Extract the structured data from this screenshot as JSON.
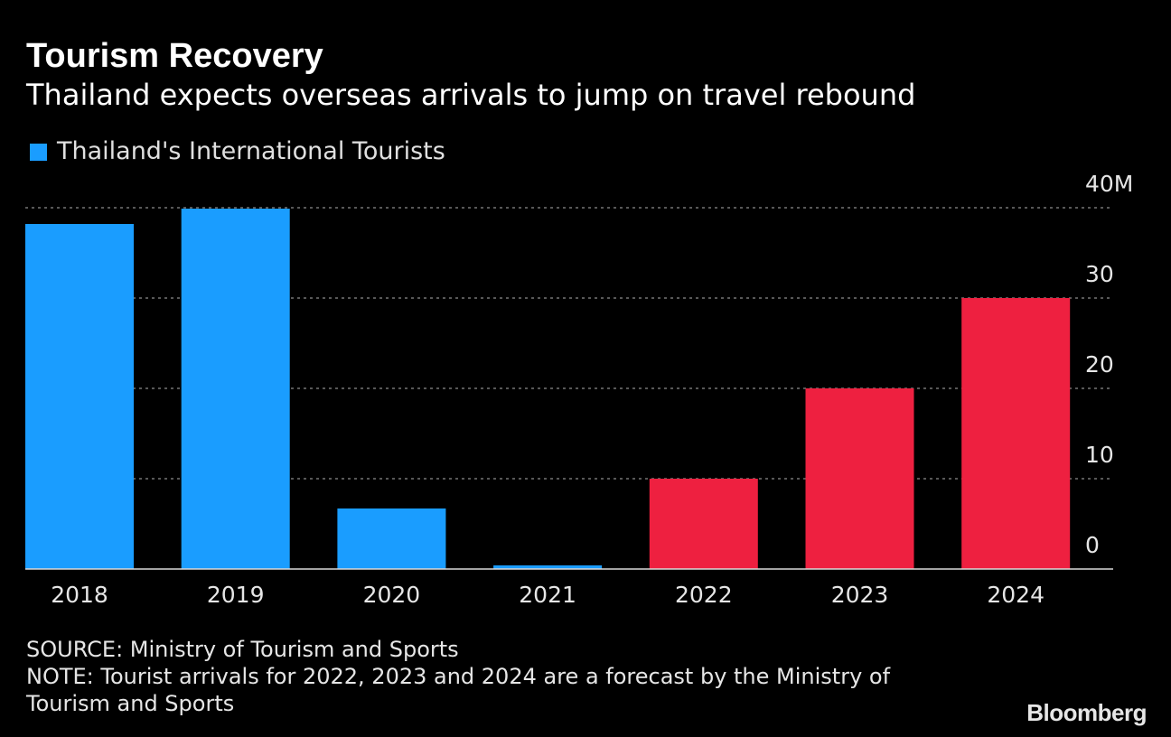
{
  "header": {
    "title": "Tourism Recovery",
    "subtitle": "Thailand expects overseas arrivals to jump on travel rebound"
  },
  "legend": {
    "label": "Thailand's International Tourists",
    "color": "#1a9dff"
  },
  "footer": {
    "source": "SOURCE: Ministry of Tourism and Sports",
    "note": "NOTE: Tourist arrivals for 2022, 2023 and 2024 are a forecast by the Ministry of Tourism and Sports",
    "brand": "Bloomberg"
  },
  "chart_data": {
    "type": "bar",
    "title": "Tourism Recovery",
    "subtitle": "Thailand expects overseas arrivals to jump on travel rebound",
    "categories": [
      "2018",
      "2019",
      "2020",
      "2021",
      "2022",
      "2023",
      "2024"
    ],
    "series": [
      {
        "name": "Thailand's International Tourists",
        "values": [
          38.2,
          39.9,
          6.7,
          0.4,
          10,
          20,
          30
        ]
      }
    ],
    "bar_colors": [
      "#1a9dff",
      "#1a9dff",
      "#1a9dff",
      "#1a9dff",
      "#ee2040",
      "#ee2040",
      "#ee2040"
    ],
    "forecast_categories": [
      "2022",
      "2023",
      "2024"
    ],
    "ylim": [
      0,
      40
    ],
    "yticks": [
      0,
      10,
      20,
      30,
      40
    ],
    "ytick_labels": [
      "0",
      "10",
      "20",
      "30",
      "40M"
    ],
    "y_axis_position": "right",
    "grid": true,
    "legend_position": "top-left",
    "xlabel": "",
    "ylabel": ""
  }
}
